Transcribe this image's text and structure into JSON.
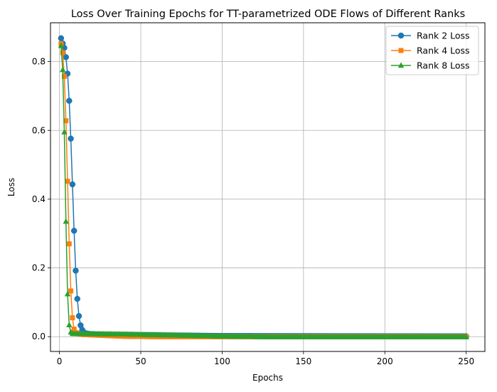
{
  "chart_data": {
    "type": "line",
    "title": "Loss Over Training Epochs for TT-parametrized ODE Flows of Different Ranks",
    "xlabel": "Epochs",
    "ylabel": "Loss",
    "xlim": [
      -5.5,
      261.5
    ],
    "ylim": [
      -0.043,
      0.913
    ],
    "xticks": [
      0,
      50,
      100,
      150,
      200,
      250
    ],
    "yticks": [
      0.0,
      0.2,
      0.4,
      0.6,
      0.8
    ],
    "xtick_labels": [
      "0",
      "50",
      "100",
      "150",
      "200",
      "250"
    ],
    "ytick_labels": [
      "0.0",
      "0.2",
      "0.4",
      "0.6",
      "0.8"
    ],
    "grid": true,
    "legend_position": "top-right",
    "series": [
      {
        "name": "Rank 2 Loss",
        "color": "#1f77b4",
        "marker": "circle",
        "anchors": [
          [
            1,
            0.868
          ],
          [
            2,
            0.853
          ],
          [
            3,
            0.84
          ],
          [
            4,
            0.813
          ],
          [
            5,
            0.765
          ],
          [
            6,
            0.686
          ],
          [
            7,
            0.576
          ],
          [
            8,
            0.443
          ],
          [
            9,
            0.308
          ],
          [
            10,
            0.192
          ],
          [
            11,
            0.11
          ],
          [
            12,
            0.06
          ],
          [
            13,
            0.033
          ],
          [
            14,
            0.02
          ],
          [
            15,
            0.013
          ],
          [
            16,
            0.01
          ],
          [
            18,
            0.008
          ],
          [
            20,
            0.007
          ],
          [
            25,
            0.006
          ],
          [
            40,
            0.005
          ],
          [
            60,
            0.004
          ],
          [
            100,
            0.002
          ],
          [
            250,
            0.001
          ]
        ]
      },
      {
        "name": "Rank 4 Loss",
        "color": "#ff7f0e",
        "marker": "square",
        "anchors": [
          [
            1,
            0.852
          ],
          [
            2,
            0.826
          ],
          [
            3,
            0.757
          ],
          [
            4,
            0.628
          ],
          [
            5,
            0.452
          ],
          [
            6,
            0.27
          ],
          [
            7,
            0.133
          ],
          [
            8,
            0.055
          ],
          [
            9,
            0.022
          ],
          [
            10,
            0.012
          ],
          [
            12,
            0.008
          ],
          [
            15,
            0.006
          ],
          [
            20,
            0.005
          ],
          [
            30,
            0.003
          ],
          [
            40,
            0.001
          ],
          [
            60,
            0.0
          ],
          [
            100,
            0.0
          ],
          [
            250,
            0.0
          ]
        ]
      },
      {
        "name": "Rank 8 Loss",
        "color": "#2ca02c",
        "marker": "triangle",
        "anchors": [
          [
            1,
            0.846
          ],
          [
            2,
            0.776
          ],
          [
            3,
            0.595
          ],
          [
            4,
            0.335
          ],
          [
            5,
            0.124
          ],
          [
            6,
            0.034
          ],
          [
            7,
            0.013
          ],
          [
            8,
            0.009
          ],
          [
            9,
            0.008
          ],
          [
            12,
            0.008
          ],
          [
            20,
            0.008
          ],
          [
            40,
            0.007
          ],
          [
            60,
            0.005
          ],
          [
            80,
            0.003
          ],
          [
            100,
            0.001
          ],
          [
            130,
            -0.001
          ],
          [
            250,
            -0.001
          ]
        ]
      }
    ]
  }
}
